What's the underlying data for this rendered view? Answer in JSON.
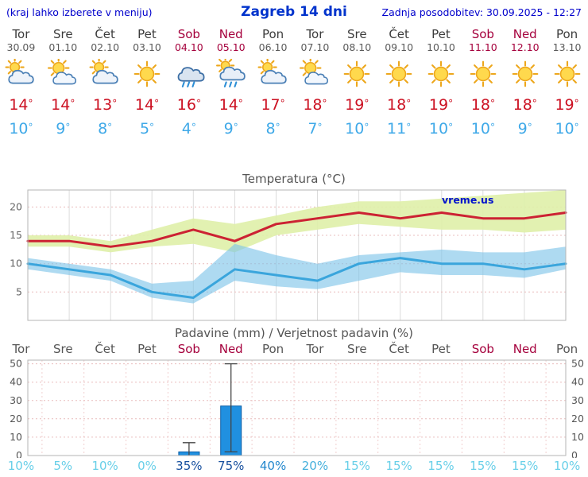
{
  "header": {
    "left_note": "(kraj lahko izberete v meniju)",
    "title": "Zagreb 14 dni",
    "updated": "Zadnja posodobitev: 30.09.2025 - 12:27"
  },
  "symbols": {
    "degree": "°",
    "percent": "%"
  },
  "watermark": "vreme.us",
  "days": [
    {
      "name": "Tor",
      "date": "30.09",
      "weekend": false,
      "icon": "mostly-cloudy",
      "tmax": 14,
      "tmin": 10
    },
    {
      "name": "Sre",
      "date": "01.10",
      "weekend": false,
      "icon": "partly-cloudy",
      "tmax": 14,
      "tmin": 9
    },
    {
      "name": "Čet",
      "date": "02.10",
      "weekend": false,
      "icon": "mostly-cloudy",
      "tmax": 13,
      "tmin": 8
    },
    {
      "name": "Pet",
      "date": "03.10",
      "weekend": false,
      "icon": "sunny",
      "tmax": 14,
      "tmin": 5
    },
    {
      "name": "Sob",
      "date": "04.10",
      "weekend": true,
      "icon": "rain",
      "tmax": 16,
      "tmin": 4
    },
    {
      "name": "Ned",
      "date": "05.10",
      "weekend": true,
      "icon": "sun-showers",
      "tmax": 14,
      "tmin": 9
    },
    {
      "name": "Pon",
      "date": "06.10",
      "weekend": false,
      "icon": "mostly-cloudy",
      "tmax": 17,
      "tmin": 8
    },
    {
      "name": "Tor",
      "date": "07.10",
      "weekend": false,
      "icon": "partly-cloudy",
      "tmax": 18,
      "tmin": 7
    },
    {
      "name": "Sre",
      "date": "08.10",
      "weekend": false,
      "icon": "sunny",
      "tmax": 19,
      "tmin": 10
    },
    {
      "name": "Čet",
      "date": "09.10",
      "weekend": false,
      "icon": "sunny",
      "tmax": 18,
      "tmin": 11
    },
    {
      "name": "Pet",
      "date": "10.10",
      "weekend": false,
      "icon": "sunny",
      "tmax": 19,
      "tmin": 10
    },
    {
      "name": "Sob",
      "date": "11.10",
      "weekend": true,
      "icon": "sunny",
      "tmax": 18,
      "tmin": 10
    },
    {
      "name": "Ned",
      "date": "12.10",
      "weekend": true,
      "icon": "sunny",
      "tmax": 18,
      "tmin": 9
    },
    {
      "name": "Pon",
      "date": "13.10",
      "weekend": false,
      "icon": "sunny",
      "tmax": 19,
      "tmin": 10
    }
  ],
  "chart_data": [
    {
      "type": "line",
      "title": "Temperatura (°C)",
      "x_labels": [
        "Tor 30.09",
        "Sre 01.10",
        "Čet 02.10",
        "Pet 03.10",
        "Sob 04.10",
        "Ned 05.10",
        "Pon 06.10",
        "Tor 07.10",
        "Sre 08.10",
        "Čet 09.10",
        "Pet 10.10",
        "Sob 11.10",
        "Ned 12.10",
        "Pon 13.10"
      ],
      "ylim": [
        0,
        23
      ],
      "yticks": [
        5,
        10,
        15,
        20
      ],
      "grid": true,
      "legend": "none",
      "series": [
        {
          "name": "max_temp",
          "color": "#cc2233",
          "values": [
            14,
            14,
            13,
            14,
            16,
            14,
            17,
            18,
            19,
            18,
            19,
            18,
            18,
            19
          ]
        },
        {
          "name": "min_temp",
          "color": "#3aa5dc",
          "values": [
            10,
            9,
            8,
            5,
            4,
            9,
            8,
            7,
            10,
            11,
            10,
            10,
            9,
            10
          ]
        },
        {
          "name": "max_temp_range_upper",
          "color": "#dff0a8",
          "values": [
            15,
            15,
            14,
            16,
            18,
            17,
            18.5,
            20,
            21,
            21,
            21.5,
            22,
            22.5,
            23
          ]
        },
        {
          "name": "max_temp_range_lower",
          "color": "#dff0a8",
          "values": [
            13,
            13,
            12,
            13,
            13.5,
            12,
            15,
            16,
            17,
            16.5,
            16,
            16,
            15.5,
            16
          ]
        },
        {
          "name": "min_temp_range_upper",
          "color": "#7cc4e8",
          "values": [
            11,
            10,
            9,
            6.5,
            7,
            13.5,
            11.5,
            10,
            11.5,
            12,
            12.5,
            12,
            12,
            13
          ]
        },
        {
          "name": "min_temp_range_lower",
          "color": "#7cc4e8",
          "values": [
            9,
            8,
            7,
            4,
            3,
            7,
            6,
            5.5,
            7,
            8.5,
            8,
            8,
            7.5,
            9
          ]
        }
      ]
    },
    {
      "type": "bar",
      "title": "Padavine (mm) / Verjetnost padavin (%)",
      "categories": [
        "Tor",
        "Sre",
        "Čet",
        "Pet",
        "Sob",
        "Ned",
        "Pon",
        "Tor",
        "Sre",
        "Čet",
        "Pet",
        "Sob",
        "Ned",
        "Pon"
      ],
      "values_mm": [
        0,
        0,
        0,
        0,
        2,
        27,
        0,
        0,
        0,
        0,
        0,
        0,
        0,
        0
      ],
      "range_min_mm": [
        null,
        null,
        null,
        null,
        0,
        2,
        null,
        null,
        null,
        null,
        null,
        null,
        null,
        null
      ],
      "range_max_mm": [
        null,
        null,
        null,
        null,
        7,
        50,
        null,
        null,
        null,
        null,
        null,
        null,
        null,
        null
      ],
      "probability_pct": [
        10,
        5,
        10,
        0,
        35,
        75,
        40,
        20,
        15,
        15,
        15,
        15,
        15,
        10
      ],
      "probability_tone": [
        "light",
        "light",
        "light",
        "light",
        "dark",
        "dark",
        "strong",
        "medium",
        "light",
        "light",
        "light",
        "light",
        "light",
        "light"
      ],
      "ylim": [
        0,
        52
      ],
      "yticks": [
        0,
        10,
        20,
        30,
        40,
        50
      ],
      "bar_color": "#2090e0"
    }
  ],
  "colors": {
    "weekend": "#a5003c",
    "tmax": "#cc1122",
    "tmin": "#3fa9e8",
    "accent_blue": "#0033cc",
    "tone_light": "#68cfe8",
    "tone_medium": "#45b0dc",
    "tone_strong": "#2387cc",
    "tone_dark": "#164f9e"
  }
}
